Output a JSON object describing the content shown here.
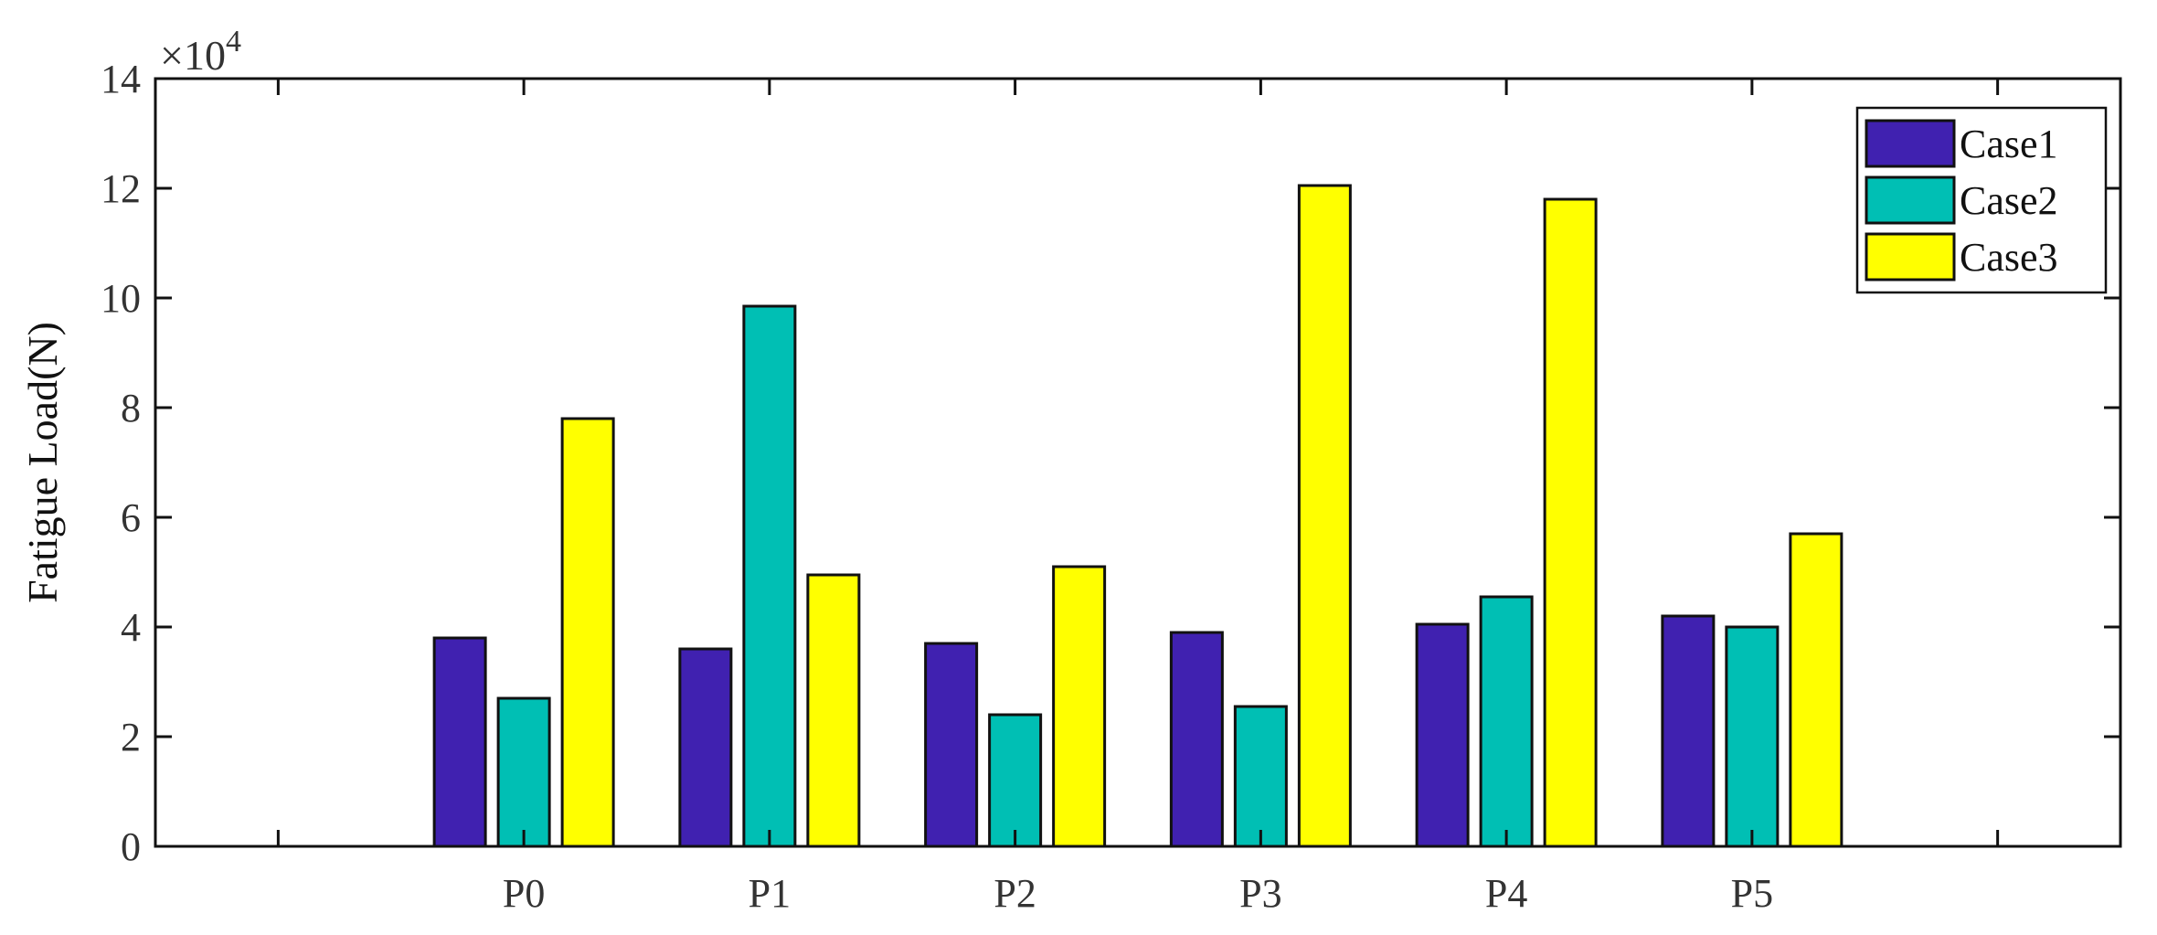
{
  "chart_data": {
    "type": "bar",
    "title": "",
    "xlabel": "",
    "ylabel": "Fatigue Load(N)",
    "y_multiplier_label": "×10",
    "y_multiplier_exponent": "4",
    "categories": [
      "P0",
      "P1",
      "P2",
      "P3",
      "P4",
      "P5"
    ],
    "series": [
      {
        "name": "Case1",
        "color": "#4021b0",
        "values": [
          3.8,
          3.6,
          3.7,
          3.9,
          4.05,
          4.2
        ]
      },
      {
        "name": "Case2",
        "color": "#00bfb4",
        "values": [
          2.7,
          9.85,
          2.4,
          2.55,
          4.55,
          4.0
        ]
      },
      {
        "name": "Case3",
        "color": "#ffff00",
        "values": [
          7.8,
          4.95,
          5.1,
          12.05,
          11.8,
          5.7
        ]
      }
    ],
    "ylim": [
      0,
      14
    ],
    "yticks": [
      0,
      2,
      4,
      6,
      8,
      10,
      12,
      14
    ],
    "x_domain": [
      -1.5,
      6.5
    ],
    "legend_position": "top-right",
    "grid": false
  }
}
